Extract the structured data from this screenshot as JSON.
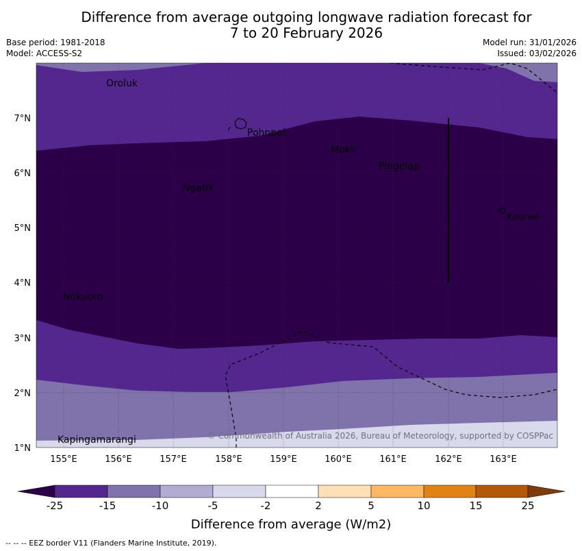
{
  "title_line1": "Difference from average outgoing longwave radiation forecast for",
  "title_line2": "7 to 20 February 2026",
  "base_period": "Base period: 1981-2018",
  "model": "Model: ACCESS-S2",
  "model_run": "Model run: 31/01/2026",
  "issued": "Issued: 03/02/2026",
  "lon_labels": [
    "155°E",
    "156°E",
    "157°E",
    "158°E",
    "159°E",
    "160°E",
    "161°E",
    "162°E",
    "163°E"
  ],
  "lat_labels": [
    "7°N",
    "6°N",
    "5°N",
    "4°N",
    "3°N",
    "2°N",
    "1°N"
  ],
  "places": [
    "Oroluk",
    "Pohnpei",
    "Mokil",
    "Pingelap",
    "Ngatik",
    "Kosrae",
    "Nukuoro",
    "Kapingamarangi"
  ],
  "copyright": "© Commonwealth of Australia 2026, Bureau of Meteorology, supported by COSPPac",
  "colorbar": {
    "ticks": [
      "-25",
      "-15",
      "-10",
      "-5",
      "-2",
      "2",
      "5",
      "10",
      "15",
      "25"
    ],
    "colors": [
      "#2b0048",
      "#54278f",
      "#8073ac",
      "#b2abd2",
      "#d8daeb",
      "#ffffff",
      "#fee0b6",
      "#fdb863",
      "#e08214",
      "#b35806",
      "#7f3b08"
    ],
    "title": "Difference from average (W/m2)"
  },
  "footnote": "--  --  -- EEZ border V11 (Flanders Marine Institute, 2019)."
}
